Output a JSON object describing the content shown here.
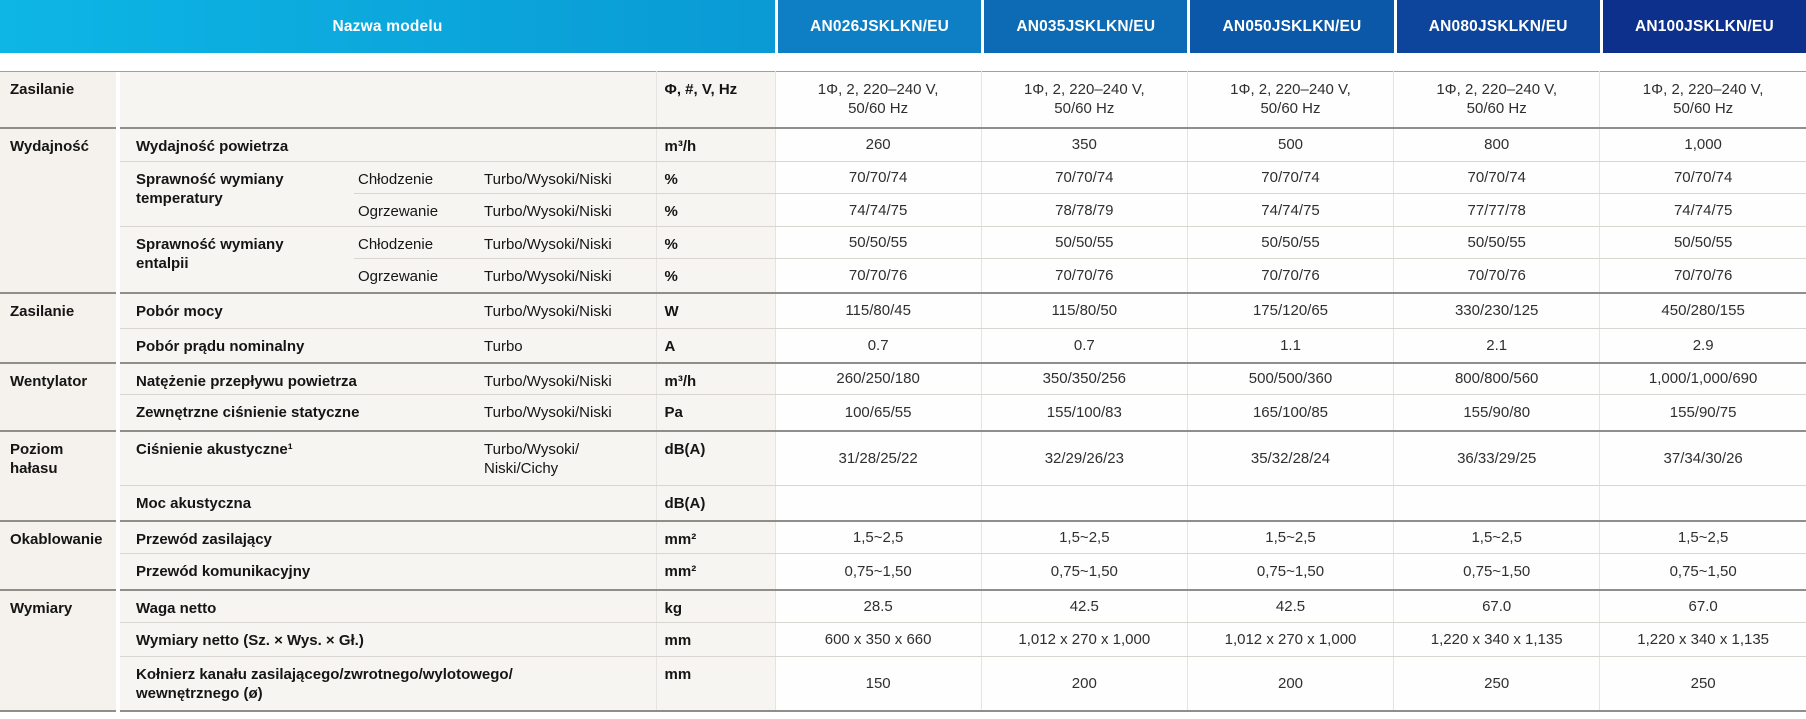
{
  "header": {
    "model_label": "Nazwa modelu",
    "models": [
      "AN026JSKLKN/EU",
      "AN035JSKLKN/EU",
      "AN050JSKLKN/EU",
      "AN080JSKLKN/EU",
      "AN100JSKLKN/EU"
    ],
    "gradient": [
      "#0db6e5",
      "#0a9ad4"
    ],
    "model_colors": [
      "#0e7fc4",
      "#0c6bb4",
      "#0b58a8",
      "#0c459b",
      "#0d308d"
    ]
  },
  "table": {
    "rows": [
      {
        "cat": "Zasilanie",
        "catspan": 1,
        "label": "",
        "labelspan": 3,
        "unit": "Φ, #, V, Hz",
        "values": [
          "1Φ, 2, 220–240 V,\n50/60 Hz",
          "1Φ, 2, 220–240 V,\n50/60 Hz",
          "1Φ, 2, 220–240 V,\n50/60 Hz",
          "1Φ, 2, 220–240 V,\n50/60 Hz",
          "1Φ, 2, 220–240 V,\n50/60 Hz"
        ],
        "last": true
      },
      {
        "cat": "Wydajność",
        "catspan": 5,
        "label": "Wydajność powietrza",
        "labelspan": 3,
        "unit": "m³/h",
        "values": [
          "260",
          "350",
          "500",
          "800",
          "1,000"
        ]
      },
      {
        "label": "Sprawność wymiany\ntemperatury",
        "rowspan": 2,
        "mode": "Chłodzenie",
        "speeds": "Turbo/Wysoki/Niski",
        "unit": "%",
        "values": [
          "70/70/74",
          "70/70/74",
          "70/70/74",
          "70/70/74",
          "70/70/74"
        ]
      },
      {
        "mode": "Ogrzewanie",
        "speeds": "Turbo/Wysoki/Niski",
        "unit": "%",
        "values": [
          "74/74/75",
          "78/78/79",
          "74/74/75",
          "77/77/78",
          "74/74/75"
        ]
      },
      {
        "label": "Sprawność wymiany\nentalpii",
        "rowspan": 2,
        "mode": "Chłodzenie",
        "speeds": "Turbo/Wysoki/Niski",
        "unit": "%",
        "values": [
          "50/50/55",
          "50/50/55",
          "50/50/55",
          "50/50/55",
          "50/50/55"
        ]
      },
      {
        "mode": "Ogrzewanie",
        "speeds": "Turbo/Wysoki/Niski",
        "unit": "%",
        "values": [
          "70/70/76",
          "70/70/76",
          "70/70/76",
          "70/70/76",
          "70/70/76"
        ],
        "last": true
      },
      {
        "cat": "Zasilanie",
        "catspan": 2,
        "label": "Pobór mocy",
        "mode": "",
        "speeds": "Turbo/Wysoki/Niski",
        "unit": "W",
        "values": [
          "115/80/45",
          "115/80/50",
          "175/120/65",
          "330/230/125",
          "450/280/155"
        ]
      },
      {
        "label": "Pobór prądu nominalny",
        "mode": "",
        "speeds": "Turbo",
        "unit": "A",
        "values": [
          "0.7",
          "0.7",
          "1.1",
          "2.1",
          "2.9"
        ],
        "last": true
      },
      {
        "cat": "Wentylator",
        "catspan": 2,
        "label": "Natężenie przepływu powietrza",
        "mode": "",
        "speeds": "Turbo/Wysoki/Niski",
        "unit": "m³/h",
        "values": [
          "260/250/180",
          "350/350/256",
          "500/500/360",
          "800/800/560",
          "1,000/1,000/690"
        ]
      },
      {
        "label": "Zewnętrzne ciśnienie statyczne",
        "mode": "",
        "speeds": "Turbo/Wysoki/Niski",
        "unit": "Pa",
        "values": [
          "100/65/55",
          "155/100/83",
          "165/100/85",
          "155/90/80",
          "155/90/75"
        ],
        "last": true
      },
      {
        "cat": "Poziom\nhałasu",
        "catspan": 2,
        "label": "Ciśnienie akustyczne¹",
        "mode": "",
        "speeds": "Turbo/Wysoki/\nNiski/Cichy",
        "unit": "dB(A)",
        "values": [
          "31/28/25/22",
          "32/29/26/23",
          "35/32/28/24",
          "36/33/29/25",
          "37/34/30/26"
        ]
      },
      {
        "label": "Moc akustyczna",
        "mode": "",
        "speeds": "",
        "unit": "dB(A)",
        "values": [
          "",
          "",
          "",
          "",
          ""
        ],
        "last": true
      },
      {
        "cat": "Okablowanie",
        "catspan": 2,
        "label": "Przewód zasilający",
        "labelspan": 3,
        "unit": "mm²",
        "values": [
          "1,5~2,5",
          "1,5~2,5",
          "1,5~2,5",
          "1,5~2,5",
          "1,5~2,5"
        ]
      },
      {
        "label": "Przewód komunikacyjny",
        "labelspan": 3,
        "unit": "mm²",
        "values": [
          "0,75~1,50",
          "0,75~1,50",
          "0,75~1,50",
          "0,75~1,50",
          "0,75~1,50"
        ],
        "last": true
      },
      {
        "cat": "Wymiary",
        "catspan": 3,
        "label": "Waga netto",
        "labelspan": 3,
        "unit": "kg",
        "values": [
          "28.5",
          "42.5",
          "42.5",
          "67.0",
          "67.0"
        ]
      },
      {
        "label": "Wymiary netto (Sz. × Wys. × Gł.)",
        "labelspan": 3,
        "unit": "mm",
        "values": [
          "600 x 350 x 660",
          "1,012 x 270 x 1,000",
          "1,012 x 270 x 1,000",
          "1,220 x 340 x 1,135",
          "1,220 x 340 x 1,135"
        ]
      },
      {
        "label": "Kołnierz kanału zasilającego/zwrotnego/wylotowego/\nwewnętrznego (ø)",
        "labelspan": 3,
        "unit": "mm",
        "values": [
          "150",
          "200",
          "200",
          "250",
          "250"
        ],
        "last": true
      }
    ]
  }
}
